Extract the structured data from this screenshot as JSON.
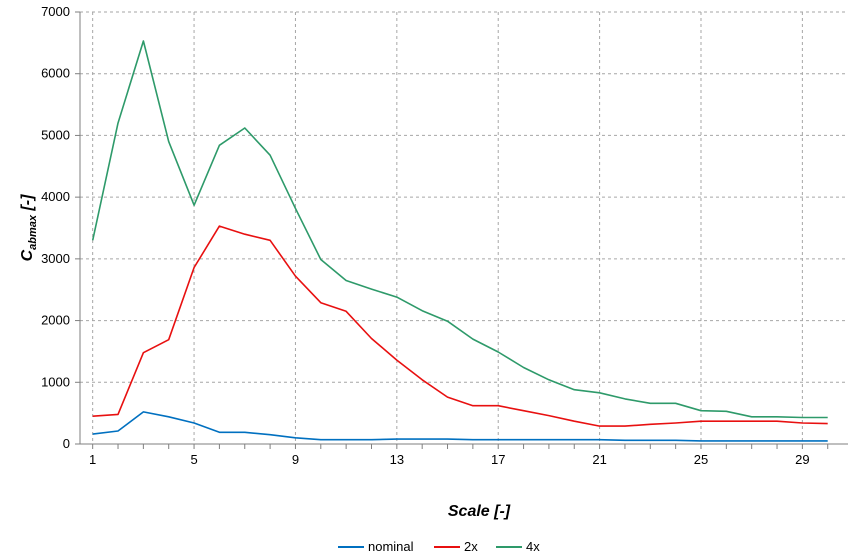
{
  "chart_data": {
    "type": "line",
    "title": "",
    "xlabel": "Scale [-]",
    "ylabel_main": "C",
    "ylabel_sub": "abmax",
    "ylabel_suffix": " [-]",
    "xlim": [
      0.5,
      30.8
    ],
    "ylim": [
      0,
      7000
    ],
    "x_ticks": [
      1,
      5,
      9,
      13,
      17,
      21,
      25,
      29
    ],
    "x_minor_ticks": [
      1,
      2,
      3,
      4,
      5,
      6,
      7,
      8,
      9,
      10,
      11,
      12,
      13,
      14,
      15,
      16,
      17,
      18,
      19,
      20,
      21,
      22,
      23,
      24,
      25,
      26,
      27,
      28,
      29,
      30
    ],
    "y_ticks": [
      0,
      1000,
      2000,
      3000,
      4000,
      5000,
      6000,
      7000
    ],
    "grid": true,
    "legend_position": "bottom",
    "x": [
      1,
      2,
      3,
      4,
      5,
      6,
      7,
      8,
      9,
      10,
      11,
      12,
      13,
      14,
      15,
      16,
      17,
      18,
      19,
      20,
      21,
      22,
      23,
      24,
      25,
      26,
      27,
      28,
      29,
      30
    ],
    "series": [
      {
        "name": "nominal",
        "color": "#0070c0",
        "values": [
          160,
          210,
          520,
          440,
          340,
          190,
          190,
          150,
          100,
          70,
          70,
          70,
          80,
          80,
          80,
          70,
          70,
          70,
          70,
          70,
          70,
          60,
          60,
          60,
          50,
          50,
          50,
          50,
          50,
          50
        ]
      },
      {
        "name": "2x",
        "color": "#e81010",
        "values": [
          450,
          480,
          1480,
          1690,
          2860,
          3530,
          3400,
          3300,
          2720,
          2290,
          2150,
          1710,
          1360,
          1040,
          760,
          620,
          620,
          540,
          460,
          370,
          290,
          290,
          320,
          340,
          370,
          370,
          370,
          370,
          340,
          330
        ]
      },
      {
        "name": "4x",
        "color": "#2e9a6a",
        "values": [
          3300,
          5200,
          6530,
          4900,
          3870,
          4840,
          5120,
          4680,
          3820,
          2990,
          2650,
          2510,
          2380,
          2160,
          1990,
          1700,
          1490,
          1240,
          1040,
          880,
          830,
          730,
          660,
          660,
          540,
          530,
          440,
          440,
          430,
          430
        ]
      }
    ]
  }
}
